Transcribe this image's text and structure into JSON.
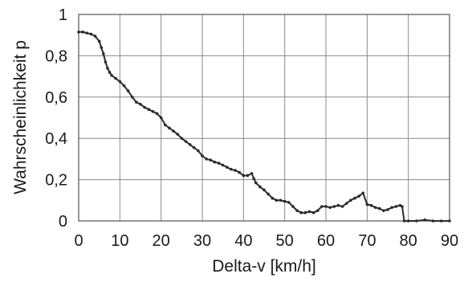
{
  "chart_data": {
    "type": "line",
    "title": "",
    "xlabel": "Delta-v [km/h]",
    "ylabel": "Wahrscheinlichkeit p",
    "xlim": [
      0,
      90
    ],
    "ylim": [
      0,
      1
    ],
    "grid": true,
    "x_ticks": [
      0,
      10,
      20,
      30,
      40,
      50,
      60,
      70,
      80,
      90
    ],
    "x_tick_labels": [
      "0",
      "10",
      "20",
      "30",
      "40",
      "50",
      "60",
      "70",
      "80",
      "90"
    ],
    "y_ticks": [
      0,
      0.2,
      0.4,
      0.6,
      0.8,
      1
    ],
    "y_tick_labels": [
      "0",
      "0,2",
      "0,4",
      "0,6",
      "0,8",
      "1"
    ],
    "series": [
      {
        "x": [
          0,
          1,
          2,
          3,
          4,
          5,
          5.5,
          6,
          6.5,
          7,
          7.5,
          8,
          9,
          10,
          11,
          12,
          13,
          14,
          15,
          16,
          17,
          18,
          19,
          20,
          21,
          22,
          23,
          24,
          25,
          26,
          27,
          28,
          29,
          30,
          31,
          32,
          33,
          34,
          35,
          36,
          37,
          38,
          39,
          40,
          41,
          42,
          42.5,
          43,
          44,
          45,
          46,
          47,
          48,
          49,
          50,
          51,
          52,
          53,
          54,
          55,
          56,
          57,
          58,
          59,
          60,
          61,
          62,
          63,
          64,
          65,
          66,
          67,
          68,
          69,
          70,
          71,
          72,
          73,
          74,
          75,
          76,
          77,
          78,
          78.5,
          79,
          80,
          82,
          84,
          86,
          88,
          90
        ],
        "y": [
          0.915,
          0.915,
          0.91,
          0.905,
          0.895,
          0.87,
          0.84,
          0.81,
          0.77,
          0.74,
          0.72,
          0.705,
          0.69,
          0.675,
          0.655,
          0.63,
          0.6,
          0.575,
          0.565,
          0.55,
          0.54,
          0.53,
          0.52,
          0.5,
          0.465,
          0.45,
          0.435,
          0.42,
          0.4,
          0.385,
          0.37,
          0.355,
          0.34,
          0.315,
          0.3,
          0.295,
          0.285,
          0.28,
          0.27,
          0.26,
          0.25,
          0.245,
          0.235,
          0.22,
          0.22,
          0.23,
          0.205,
          0.185,
          0.165,
          0.15,
          0.13,
          0.11,
          0.1,
          0.1,
          0.095,
          0.09,
          0.07,
          0.05,
          0.04,
          0.04,
          0.045,
          0.04,
          0.05,
          0.07,
          0.07,
          0.065,
          0.07,
          0.075,
          0.07,
          0.085,
          0.1,
          0.11,
          0.12,
          0.135,
          0.08,
          0.075,
          0.065,
          0.06,
          0.05,
          0.055,
          0.065,
          0.07,
          0.075,
          0.07,
          0,
          0,
          0,
          0.005,
          0,
          0,
          0
        ]
      }
    ]
  }
}
